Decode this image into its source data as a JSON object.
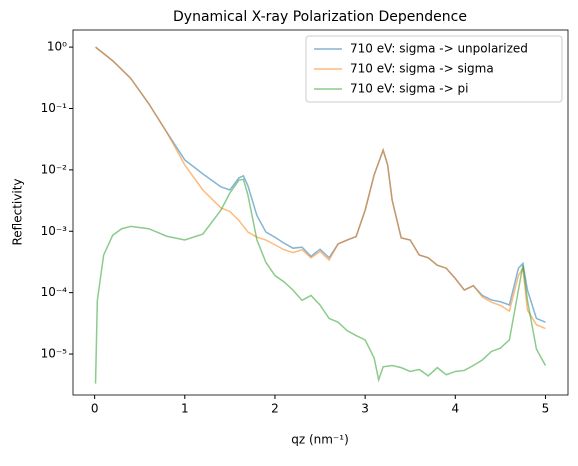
{
  "chart_data": {
    "type": "line",
    "title": "Dynamical X-ray Polarization Dependence",
    "xlabel": "qz (nm⁻¹)",
    "ylabel": "Reflectivity",
    "xlim": [
      -0.24,
      5.25
    ],
    "xticks": [
      0,
      1,
      2,
      3,
      4,
      5
    ],
    "ylim": [
      2.15e-06,
      1.9
    ],
    "ylog": true,
    "yticks": [
      {
        "value": 1e-05,
        "label": "10⁻⁵"
      },
      {
        "value": 0.0001,
        "label": "10⁻⁴"
      },
      {
        "value": 0.001,
        "label": "10⁻³"
      },
      {
        "value": 0.01,
        "label": "10⁻²"
      },
      {
        "value": 0.1,
        "label": "10⁻¹"
      },
      {
        "value": 1,
        "label": "10⁰"
      }
    ],
    "legend": "upper right",
    "alpha": 0.55,
    "series": [
      {
        "name": "710 eV: sigma -> unpolarized",
        "color": "#1f77b4",
        "x": [
          0.01,
          0.2,
          0.4,
          0.6,
          0.8,
          1.0,
          1.2,
          1.4,
          1.5,
          1.6,
          1.65,
          1.7,
          1.8,
          1.9,
          2.0,
          2.1,
          2.2,
          2.3,
          2.4,
          2.5,
          2.6,
          2.7,
          2.8,
          2.9,
          3.0,
          3.1,
          3.2,
          3.25,
          3.3,
          3.4,
          3.5,
          3.6,
          3.7,
          3.8,
          3.9,
          4.0,
          4.1,
          4.2,
          4.3,
          4.4,
          4.5,
          4.6,
          4.7,
          4.75,
          4.8,
          4.9,
          5.0
        ],
        "values": [
          1.0,
          0.6,
          0.31,
          0.12,
          0.041,
          0.0145,
          0.0086,
          0.0053,
          0.0047,
          0.0074,
          0.008,
          0.0055,
          0.0018,
          0.00097,
          0.0008,
          0.00064,
          0.00053,
          0.00055,
          0.00039,
          0.00051,
          0.00037,
          0.00062,
          0.00072,
          0.00082,
          0.0022,
          0.0083,
          0.021,
          0.012,
          0.0032,
          0.00078,
          0.00072,
          0.00041,
          0.00037,
          0.00028,
          0.00025,
          0.00017,
          0.00011,
          0.00013,
          9e-05,
          7.6e-05,
          7.1e-05,
          6.3e-05,
          0.00025,
          0.0003,
          0.00011,
          3.8e-05,
          3.3e-05
        ]
      },
      {
        "name": "710 eV: sigma -> sigma",
        "color": "#ff7f0e",
        "x": [
          0.01,
          0.2,
          0.4,
          0.6,
          0.8,
          1.0,
          1.2,
          1.4,
          1.5,
          1.6,
          1.7,
          1.8,
          1.9,
          2.0,
          2.1,
          2.2,
          2.3,
          2.4,
          2.5,
          2.6,
          2.7,
          2.8,
          2.9,
          3.0,
          3.1,
          3.2,
          3.25,
          3.3,
          3.4,
          3.5,
          3.6,
          3.7,
          3.8,
          3.9,
          4.0,
          4.1,
          4.2,
          4.3,
          4.4,
          4.5,
          4.6,
          4.7,
          4.75,
          4.8,
          4.9,
          5.0
        ],
        "values": [
          1.0,
          0.6,
          0.31,
          0.12,
          0.041,
          0.012,
          0.0047,
          0.0024,
          0.0021,
          0.0015,
          0.00097,
          0.0008,
          0.00072,
          0.0006,
          0.0005,
          0.00045,
          0.0005,
          0.00037,
          0.00047,
          0.00034,
          0.00062,
          0.00072,
          0.00082,
          0.0022,
          0.0083,
          0.021,
          0.012,
          0.0032,
          0.00078,
          0.00072,
          0.00041,
          0.00037,
          0.00028,
          0.00025,
          0.00017,
          0.00011,
          0.00013,
          8.5e-05,
          7e-05,
          6.2e-05,
          5e-05,
          0.00019,
          0.00025,
          5.2e-05,
          3e-05,
          2.6e-05
        ]
      },
      {
        "name": "710 eV: sigma -> pi",
        "color": "#2ca02c",
        "x": [
          0.01,
          0.03,
          0.1,
          0.2,
          0.3,
          0.4,
          0.6,
          0.8,
          1.0,
          1.2,
          1.4,
          1.5,
          1.6,
          1.65,
          1.7,
          1.8,
          1.9,
          2.0,
          2.1,
          2.2,
          2.3,
          2.4,
          2.5,
          2.6,
          2.7,
          2.8,
          2.9,
          3.0,
          3.1,
          3.15,
          3.2,
          3.3,
          3.4,
          3.5,
          3.6,
          3.7,
          3.8,
          3.9,
          4.0,
          4.1,
          4.2,
          4.3,
          4.4,
          4.5,
          4.6,
          4.7,
          4.75,
          4.8,
          4.9,
          5.0
        ],
        "values": [
          3.3e-06,
          7.5e-05,
          0.00041,
          0.00086,
          0.0011,
          0.0012,
          0.0011,
          0.00083,
          0.00072,
          0.0009,
          0.0022,
          0.0042,
          0.0068,
          0.007,
          0.0039,
          0.00072,
          0.00031,
          0.00019,
          0.00015,
          0.00011,
          7.5e-05,
          9e-05,
          6.3e-05,
          3.8e-05,
          3.3e-05,
          2.4e-05,
          2e-05,
          1.7e-05,
          8.6e-06,
          3.8e-06,
          6.2e-06,
          6.5e-06,
          6e-06,
          5.2e-06,
          5.6e-06,
          4.4e-06,
          6e-06,
          4.6e-06,
          5.2e-06,
          5.4e-06,
          6.5e-06,
          8e-06,
          1.1e-05,
          1.25e-05,
          1.7e-05,
          0.00011,
          0.00028,
          7.5e-05,
          1.2e-05,
          6.5e-06
        ]
      }
    ]
  }
}
